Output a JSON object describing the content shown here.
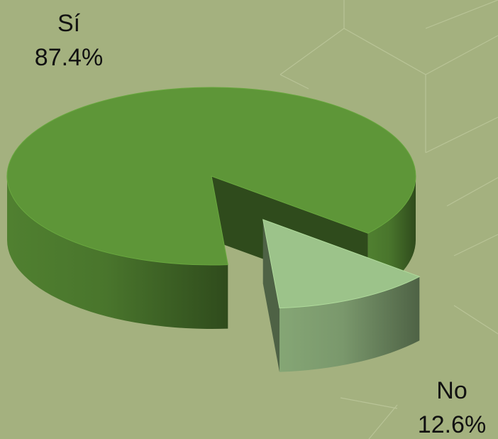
{
  "chart_data": {
    "type": "pie",
    "three_d": true,
    "categories": [
      "Sí",
      "No"
    ],
    "values": [
      87.4,
      12.6
    ],
    "value_labels": [
      "87.4%",
      "12.6%"
    ],
    "colors": [
      "#5e9638",
      "#9cc38a"
    ],
    "exploded": [
      false,
      true
    ]
  }
}
